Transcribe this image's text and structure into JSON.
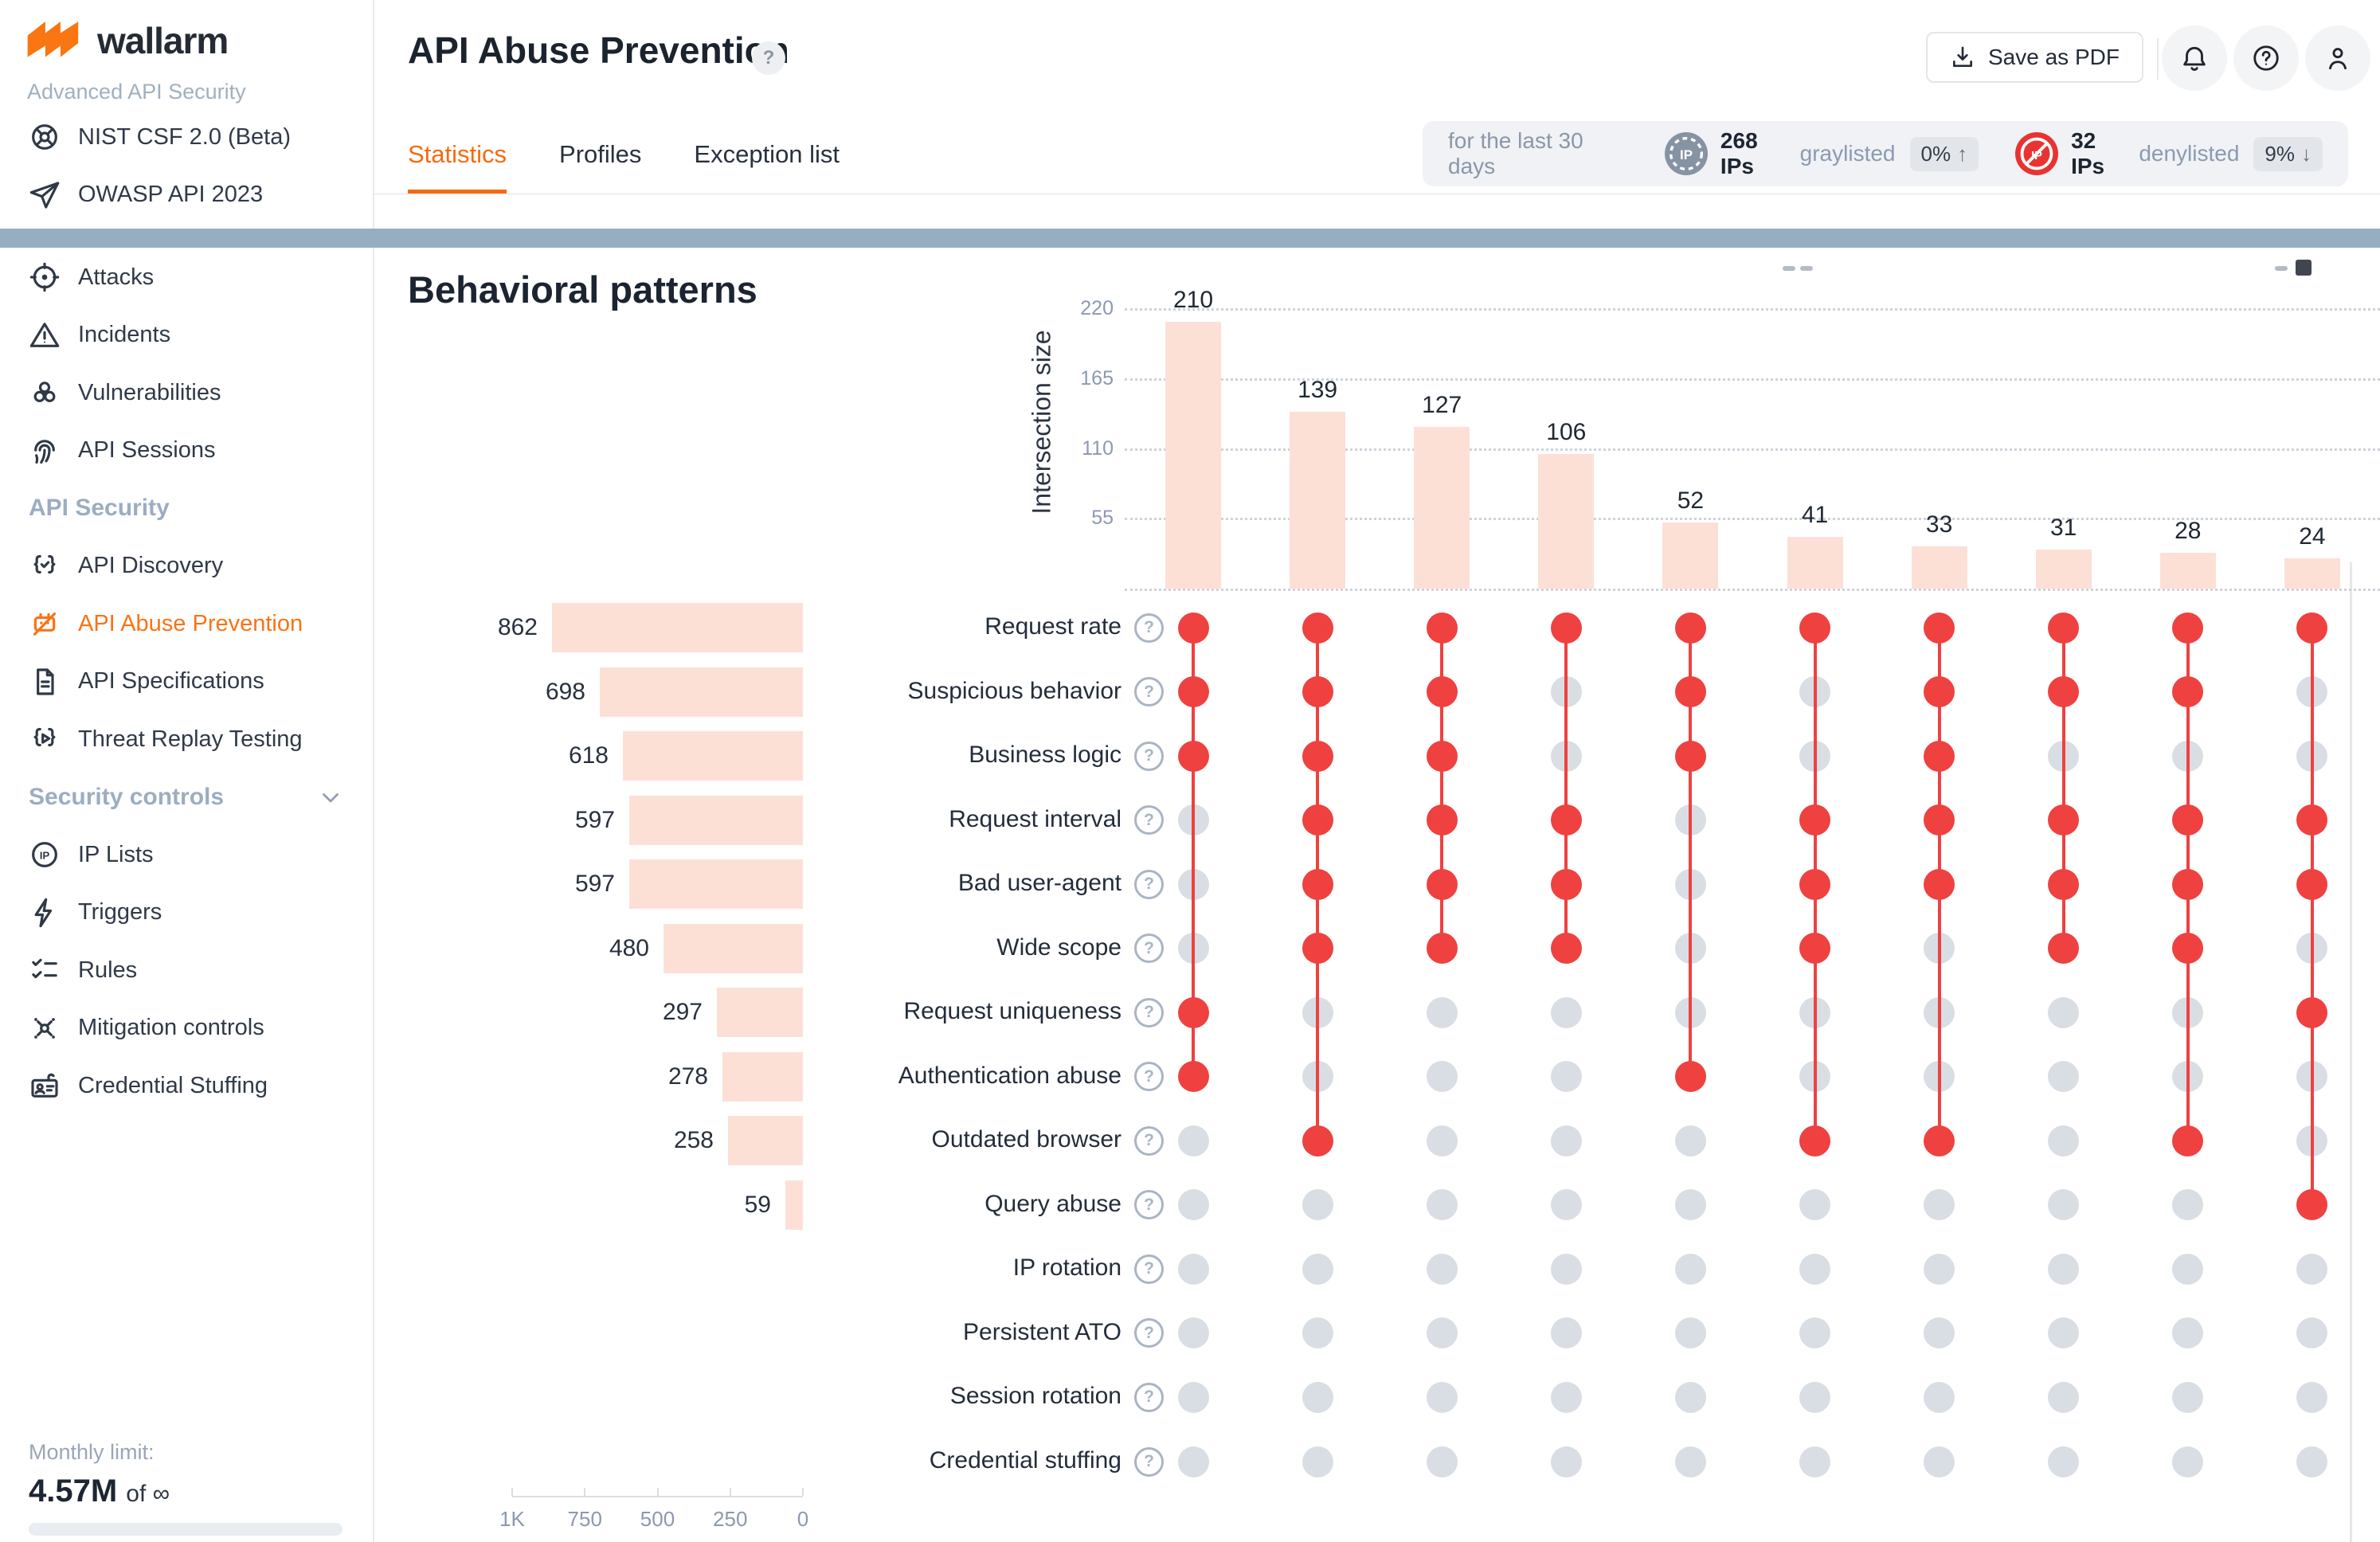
{
  "brand": {
    "name": "wallarm",
    "subtitle": "Advanced API Security"
  },
  "sidebar": {
    "top_items": [
      {
        "label": "NIST CSF 2.0 (Beta)",
        "icon": "nist-icon"
      },
      {
        "label": "OWASP API 2023",
        "icon": "paper-plane-icon"
      }
    ],
    "sections": [
      {
        "header": null,
        "items": [
          {
            "label": "Attacks",
            "icon": "target-icon"
          },
          {
            "label": "Incidents",
            "icon": "warning-icon"
          },
          {
            "label": "Vulnerabilities",
            "icon": "biohazard-icon"
          },
          {
            "label": "API Sessions",
            "icon": "fingerprint-icon"
          }
        ]
      },
      {
        "header": "API Security",
        "items": [
          {
            "label": "API Discovery",
            "icon": "braces-check-icon"
          },
          {
            "label": "API Abuse Prevention",
            "icon": "robot-icon",
            "active": true
          },
          {
            "label": "API Specifications",
            "icon": "document-icon"
          },
          {
            "label": "Threat Replay Testing",
            "icon": "braces-play-icon"
          }
        ]
      },
      {
        "header": "Security controls",
        "collapsible": true,
        "items": [
          {
            "label": "IP Lists",
            "icon": "ip-circle-icon"
          },
          {
            "label": "Triggers",
            "icon": "lightning-icon"
          },
          {
            "label": "Rules",
            "icon": "checklist-icon"
          },
          {
            "label": "Mitigation controls",
            "icon": "mitigation-icon"
          },
          {
            "label": "Credential Stuffing",
            "icon": "credential-icon"
          }
        ]
      }
    ],
    "monthly": {
      "label": "Monthly limit:",
      "used": "4.57M",
      "of": "of",
      "total": "∞"
    }
  },
  "header": {
    "title": "API Abuse Prevention",
    "save_pdf_label": "Save as PDF",
    "tabs": [
      {
        "label": "Statistics",
        "active": true
      },
      {
        "label": "Profiles",
        "active": false
      },
      {
        "label": "Exception list",
        "active": false
      }
    ]
  },
  "summary": {
    "period": "for the last 30 days",
    "graylisted": {
      "count": "268 IPs",
      "label": "graylisted",
      "delta": "0%",
      "direction": "up"
    },
    "denylisted": {
      "count": "32 IPs",
      "label": "denylisted",
      "delta": "9%",
      "direction": "down"
    }
  },
  "chart_data": {
    "type": "upset",
    "title": "Behavioral patterns",
    "ylabel": "Intersection size",
    "y_ticks": [
      55,
      110,
      165,
      220
    ],
    "set_axis_ticks": [
      "1K",
      "750",
      "500",
      "250",
      "0"
    ],
    "set_axis_max": 1000,
    "categories": [
      "Request rate",
      "Suspicious behavior",
      "Business logic",
      "Request interval",
      "Bad user-agent",
      "Wide scope",
      "Request uniqueness",
      "Authentication abuse",
      "Outdated browser",
      "Query abuse",
      "IP rotation",
      "Persistent ATO",
      "Session rotation",
      "Credential stuffing"
    ],
    "set_sizes": [
      862,
      698,
      618,
      597,
      597,
      480,
      297,
      278,
      258,
      59,
      null,
      null,
      null,
      null
    ],
    "intersections": [
      {
        "value": 210,
        "members": [
          0,
          1,
          2,
          6,
          7
        ]
      },
      {
        "value": 139,
        "members": [
          0,
          1,
          2,
          3,
          4,
          5,
          8
        ]
      },
      {
        "value": 127,
        "members": [
          0,
          1,
          2,
          3,
          4,
          5
        ]
      },
      {
        "value": 106,
        "members": [
          0,
          3,
          4,
          5
        ]
      },
      {
        "value": 52,
        "members": [
          0,
          1,
          2,
          7
        ]
      },
      {
        "value": 41,
        "members": [
          0,
          3,
          4,
          5,
          8
        ]
      },
      {
        "value": 33,
        "members": [
          0,
          1,
          2,
          3,
          4,
          8
        ]
      },
      {
        "value": 31,
        "members": [
          0,
          1,
          3,
          4,
          5
        ]
      },
      {
        "value": 28,
        "members": [
          0,
          1,
          3,
          4,
          5,
          8
        ]
      },
      {
        "value": 24,
        "members": [
          0,
          3,
          4,
          6,
          9
        ]
      }
    ],
    "colors": {
      "bar": "#fce0d6",
      "dot_active": "#ee4140",
      "dot_inactive": "#d9dee4",
      "band": "#95aec1",
      "accent_orange": "#f7690f"
    }
  }
}
